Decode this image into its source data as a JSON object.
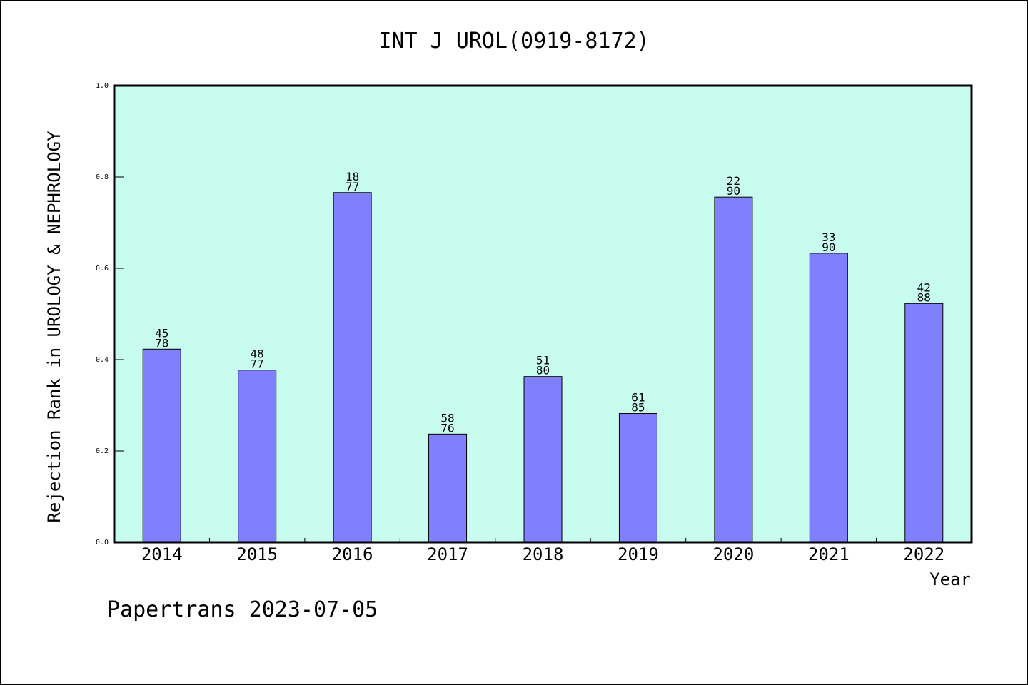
{
  "chart_data": {
    "type": "bar",
    "title": "INT J UROL(0919-8172)",
    "xlabel": "Year",
    "ylabel": "Rejection Rank in UROLOGY & NEPHROLOGY",
    "ylim": [
      0,
      1.0
    ],
    "yticks": [
      "0.0",
      "0.2",
      "0.4",
      "0.6",
      "0.8",
      "1.0"
    ],
    "categories": [
      "2014",
      "2015",
      "2016",
      "2017",
      "2018",
      "2019",
      "2020",
      "2021",
      "2022"
    ],
    "values": [
      0.423,
      0.377,
      0.766,
      0.237,
      0.363,
      0.282,
      0.756,
      0.633,
      0.523
    ],
    "label_top": [
      "45",
      "48",
      "18",
      "58",
      "51",
      "61",
      "22",
      "33",
      "42"
    ],
    "label_bottom": [
      "78",
      "77",
      "77",
      "76",
      "80",
      "85",
      "90",
      "90",
      "88"
    ],
    "bar_color": "#8080ff",
    "plot_bg": "#c8fcee",
    "grid": false
  },
  "footer": "Papertrans 2023-07-05"
}
